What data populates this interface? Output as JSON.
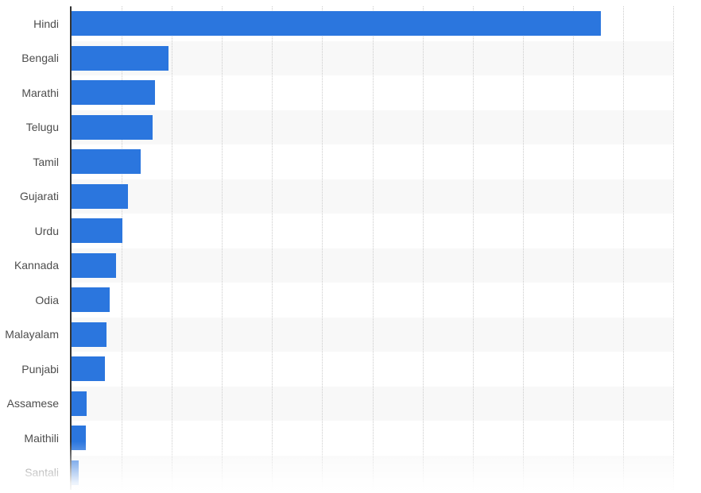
{
  "chart_data": {
    "type": "bar",
    "orientation": "horizontal",
    "title": "",
    "xlabel": "",
    "ylabel": "",
    "categories": [
      "Hindi",
      "Bengali",
      "Marathi",
      "Telugu",
      "Tamil",
      "Gujarati",
      "Urdu",
      "Kannada",
      "Odia",
      "Malayalam",
      "Punjabi",
      "Assamese",
      "Maithili",
      "Santali"
    ],
    "values": [
      528,
      97,
      83,
      81,
      69,
      56,
      51,
      44,
      38,
      35,
      33,
      15,
      14,
      7
    ],
    "xlim": [
      0,
      600
    ],
    "gridline_interval": 50,
    "grid": "vertical-dotted",
    "axis_tick_labels_visible": false,
    "legend": "none",
    "row_striping": "alternate even rows",
    "bottom_fade": true,
    "value_note": "axis unlabeled; values estimated from 12 equal gridline divisions"
  },
  "theme": {
    "bar_color": "#2B76DE",
    "row_stripe_color": "#F8F8F8",
    "gridline_color": "#CBCBCB",
    "axis_color": "#333333",
    "label_color": "#4D4D4D",
    "background_color": "#FFFFFF"
  }
}
